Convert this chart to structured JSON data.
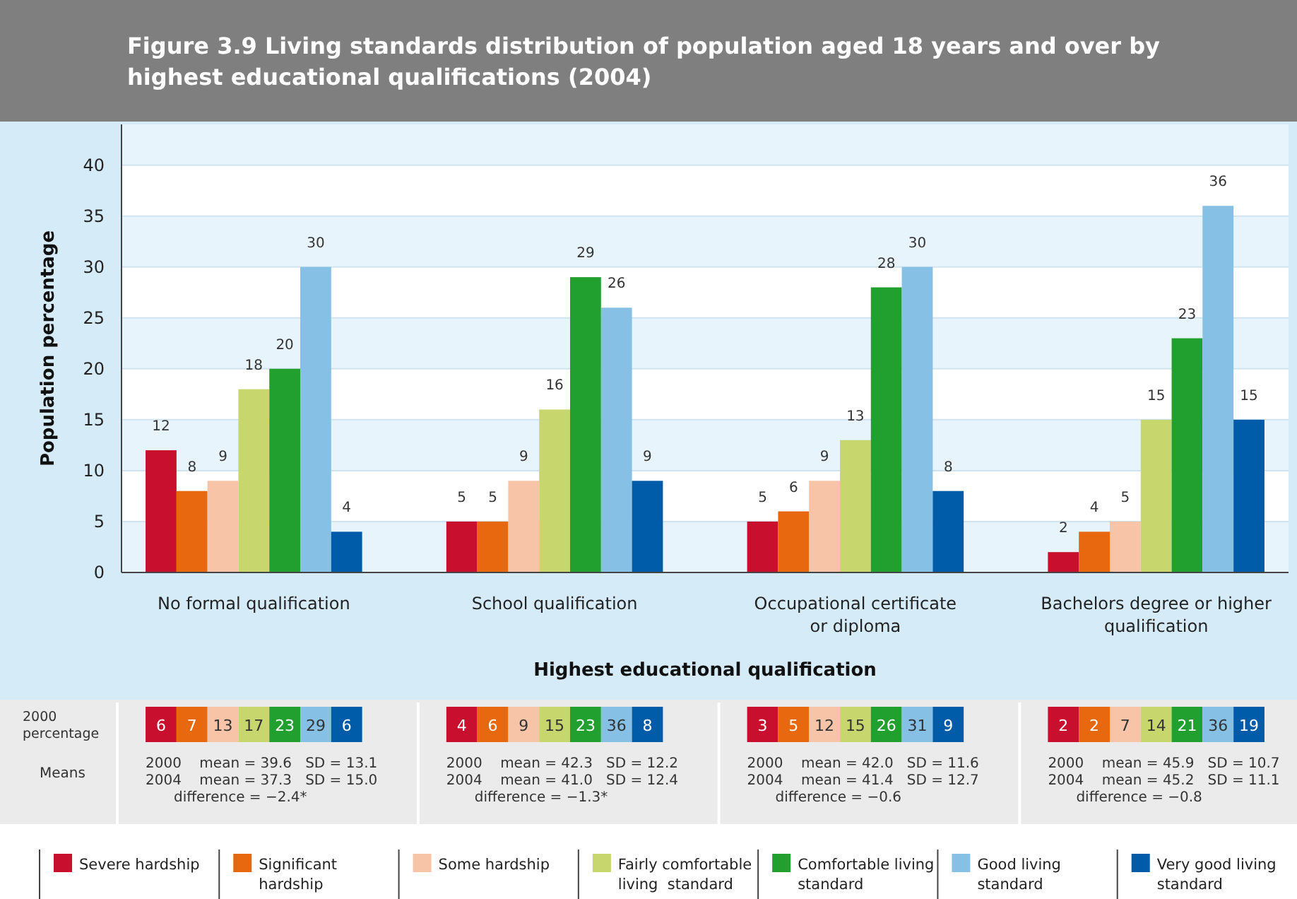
{
  "chart_data": {
    "type": "bar",
    "title": "Figure 3.9 Living standards distribution of population aged 18 years and over by highest educational qualifications (2004)",
    "xlabel": "Highest educational qualification",
    "ylabel": "Population percentage",
    "categories": [
      "No formal qualification",
      "School qualification",
      "Occupational certificate or diploma",
      "Bachelors degree or higher qualification"
    ],
    "series": [
      {
        "name": "Severe hardship",
        "color": "#c8102e",
        "values": [
          12,
          5,
          5,
          2
        ]
      },
      {
        "name": "Significant hardship",
        "color": "#e8680f",
        "values": [
          8,
          5,
          6,
          4
        ]
      },
      {
        "name": "Some hardship",
        "color": "#f7c4a8",
        "values": [
          9,
          9,
          9,
          5
        ]
      },
      {
        "name": "Fairly comfortable living  standard",
        "color": "#c7d66d",
        "values": [
          18,
          16,
          13,
          15
        ]
      },
      {
        "name": "Comfortable living standard",
        "color": "#22a02f",
        "values": [
          20,
          29,
          28,
          23
        ]
      },
      {
        "name": "Good living standard",
        "color": "#86c0e4",
        "values": [
          30,
          26,
          30,
          36
        ]
      },
      {
        "name": "Very good living standard",
        "color": "#005ca8",
        "values": [
          4,
          9,
          8,
          15
        ]
      }
    ],
    "ylim": [
      0,
      44
    ],
    "yticks": [
      0,
      5,
      10,
      15,
      20,
      25,
      30,
      35,
      40
    ],
    "grid": "y",
    "data_labels": true,
    "legend": "bottom",
    "annotations": [
      "2000 percentage",
      "Means",
      "6",
      "7",
      "13",
      "17",
      "23",
      "29",
      "6",
      "2000    mean = 39.6   SD = 13.1",
      "2004    mean = 37.3   SD = 15.0",
      "difference = −2.4*",
      "4",
      "6",
      "9",
      "15",
      "23",
      "36",
      "8",
      "2000    mean = 42.3   SD = 12.2",
      "2004    mean = 41.0   SD = 12.4",
      "difference = −1.3*",
      "3",
      "5",
      "12",
      "15",
      "26",
      "31",
      "9",
      "2000    mean = 42.0   SD = 11.6",
      "2004    mean = 41.4   SD = 12.7",
      "difference = −0.6",
      "2",
      "2",
      "7",
      "14",
      "21",
      "36",
      "19",
      "2000    mean = 45.9   SD = 10.7",
      "2004    mean = 45.2   SD = 11.1",
      "difference = −0.8"
    ]
  }
}
